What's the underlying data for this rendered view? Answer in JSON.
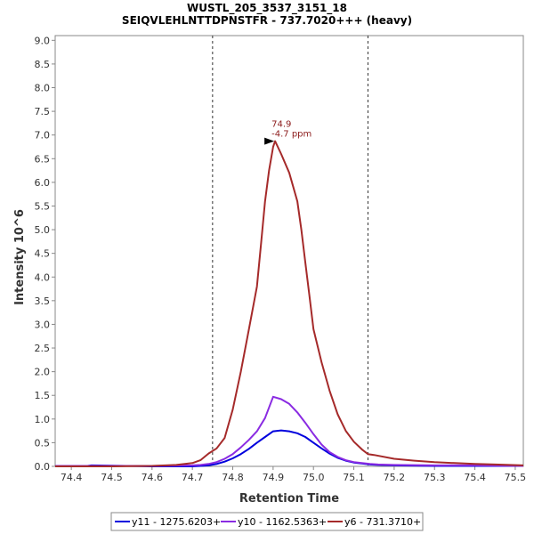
{
  "chart_data": {
    "type": "line",
    "title": "WUSTL_205_3537_3151_18",
    "subtitle": "SEIQVLEHLNTTDPNSTFR - 737.7020+++ (heavy)",
    "xlabel": "Retention Time",
    "ylabel": "Intensity 10^6",
    "xlim": [
      74.36,
      75.52
    ],
    "ylim": [
      0,
      9.1
    ],
    "x_ticks": [
      "74.4",
      "74.5",
      "74.6",
      "74.7",
      "74.8",
      "74.9",
      "75.0",
      "75.1",
      "75.2",
      "75.3",
      "75.4",
      "75.5"
    ],
    "y_ticks": [
      "0.0",
      "0.5",
      "1.0",
      "1.5",
      "2.0",
      "2.5",
      "3.0",
      "3.5",
      "4.0",
      "4.5",
      "5.0",
      "5.5",
      "6.0",
      "6.5",
      "7.0",
      "7.5",
      "8.0",
      "8.5",
      "9.0"
    ],
    "grid": false,
    "legend_position": "bottom",
    "boundaries": [
      74.75,
      75.135
    ],
    "annotation": {
      "x": 74.905,
      "y": 6.87,
      "line1": "74.9",
      "line2": "-4.7 ppm",
      "color": "#8b1a1a"
    },
    "series": [
      {
        "name": "y11 - 1275.6203+",
        "color": "#0000dd",
        "x": [
          74.36,
          74.44,
          74.45,
          74.6,
          74.7,
          74.72,
          74.74,
          74.76,
          74.78,
          74.8,
          74.82,
          74.84,
          74.86,
          74.88,
          74.9,
          74.92,
          74.94,
          74.96,
          74.98,
          75.0,
          75.02,
          75.04,
          75.06,
          75.08,
          75.1,
          75.12,
          75.14,
          75.16,
          75.2,
          75.3,
          75.4,
          75.52
        ],
        "y": [
          0.01,
          0.01,
          0.02,
          0.0,
          0.0,
          0.01,
          0.02,
          0.05,
          0.1,
          0.17,
          0.26,
          0.37,
          0.5,
          0.62,
          0.74,
          0.76,
          0.74,
          0.7,
          0.62,
          0.5,
          0.38,
          0.27,
          0.18,
          0.12,
          0.08,
          0.06,
          0.04,
          0.03,
          0.02,
          0.01,
          0.01,
          0.01
        ]
      },
      {
        "name": "y10 - 1162.5363+",
        "color": "#8a2be2",
        "x": [
          74.36,
          74.6,
          74.7,
          74.72,
          74.74,
          74.76,
          74.78,
          74.8,
          74.82,
          74.84,
          74.86,
          74.88,
          74.9,
          74.92,
          74.94,
          74.96,
          74.98,
          75.0,
          75.02,
          75.04,
          75.06,
          75.08,
          75.1,
          75.12,
          75.14,
          75.16,
          75.2,
          75.3,
          75.4,
          75.52
        ],
        "y": [
          0.01,
          0.01,
          0.02,
          0.03,
          0.05,
          0.09,
          0.16,
          0.26,
          0.4,
          0.56,
          0.74,
          1.02,
          1.47,
          1.42,
          1.32,
          1.14,
          0.92,
          0.68,
          0.46,
          0.3,
          0.2,
          0.13,
          0.09,
          0.07,
          0.05,
          0.04,
          0.03,
          0.02,
          0.02,
          0.01
        ]
      },
      {
        "name": "y6 - 731.3710+",
        "color": "#a52a2a",
        "x": [
          74.36,
          74.5,
          74.6,
          74.66,
          74.7,
          74.72,
          74.74,
          74.76,
          74.78,
          74.8,
          74.82,
          74.84,
          74.86,
          74.87,
          74.88,
          74.89,
          74.9,
          74.905,
          74.92,
          74.94,
          74.96,
          74.97,
          74.98,
          74.99,
          75.0,
          75.02,
          75.04,
          75.06,
          75.08,
          75.1,
          75.12,
          75.135,
          75.15,
          75.2,
          75.25,
          75.3,
          75.35,
          75.4,
          75.45,
          75.52
        ],
        "y": [
          0.0,
          0.0,
          0.01,
          0.03,
          0.07,
          0.13,
          0.27,
          0.38,
          0.6,
          1.2,
          2.0,
          2.9,
          3.8,
          4.7,
          5.6,
          6.25,
          6.75,
          6.87,
          6.6,
          6.2,
          5.6,
          5.0,
          4.3,
          3.6,
          2.9,
          2.2,
          1.6,
          1.1,
          0.75,
          0.52,
          0.36,
          0.26,
          0.24,
          0.16,
          0.12,
          0.09,
          0.07,
          0.05,
          0.04,
          0.02
        ]
      }
    ]
  }
}
